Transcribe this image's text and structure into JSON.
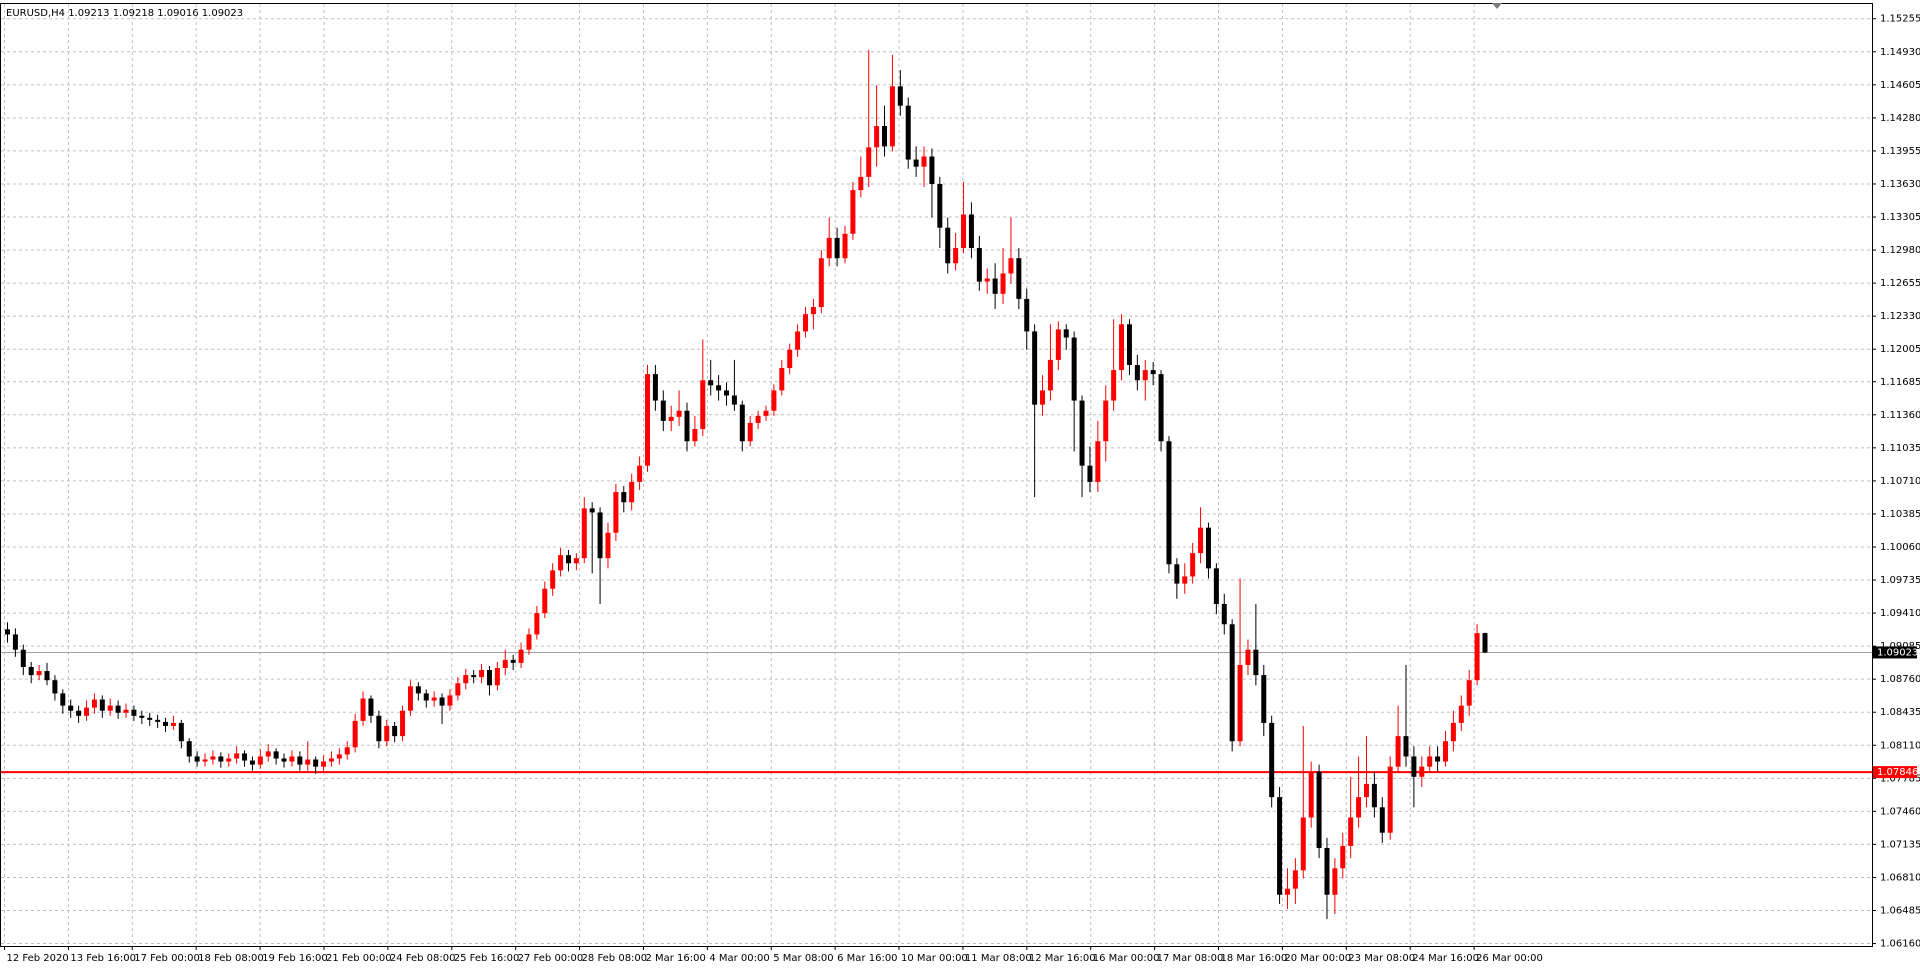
{
  "chart_data": {
    "type": "candlestick",
    "title": "EURUSD,H4  1.09213 1.09218 1.09016 1.09023",
    "up_color": "#ff0000",
    "down_color": "#000000",
    "grid": true,
    "ylim": [
      1.06136,
      1.154
    ],
    "yticks": [
      {
        "value": 1.15255,
        "label": "1.15255"
      },
      {
        "value": 1.1493,
        "label": "1.14930"
      },
      {
        "value": 1.14605,
        "label": "1.14605"
      },
      {
        "value": 1.1428,
        "label": "1.14280"
      },
      {
        "value": 1.13955,
        "label": "1.13955"
      },
      {
        "value": 1.1363,
        "label": "1.13630"
      },
      {
        "value": 1.13305,
        "label": "1.13305"
      },
      {
        "value": 1.1298,
        "label": "1.12980"
      },
      {
        "value": 1.12655,
        "label": "1.12655"
      },
      {
        "value": 1.1233,
        "label": "1.12330"
      },
      {
        "value": 1.12005,
        "label": "1.12005"
      },
      {
        "value": 1.11685,
        "label": "1.11685"
      },
      {
        "value": 1.1136,
        "label": "1.11360"
      },
      {
        "value": 1.11035,
        "label": "1.11035"
      },
      {
        "value": 1.1071,
        "label": "1.10710"
      },
      {
        "value": 1.10385,
        "label": "1.10385"
      },
      {
        "value": 1.1006,
        "label": "1.10060"
      },
      {
        "value": 1.09735,
        "label": "1.09735"
      },
      {
        "value": 1.0941,
        "label": "1.09410"
      },
      {
        "value": 1.09085,
        "label": "1.09085"
      },
      {
        "value": 1.0876,
        "label": "1.08760"
      },
      {
        "value": 1.08435,
        "label": "1.08435"
      },
      {
        "value": 1.0811,
        "label": "1.08110"
      },
      {
        "value": 1.07785,
        "label": "1.07785"
      },
      {
        "value": 1.0746,
        "label": "1.07460"
      },
      {
        "value": 1.07135,
        "label": "1.07135"
      },
      {
        "value": 1.0681,
        "label": "1.06810"
      },
      {
        "value": 1.06485,
        "label": "1.06485"
      },
      {
        "value": 1.0616,
        "label": "1.06160"
      }
    ],
    "xticks": [
      "12 Feb 2020",
      "13 Feb 16:00",
      "17 Feb 00:00",
      "18 Feb 08:00",
      "19 Feb 16:00",
      "21 Feb 00:00",
      "24 Feb 08:00",
      "25 Feb 16:00",
      "27 Feb 00:00",
      "28 Feb 08:00",
      "2 Mar 16:00",
      "4 Mar 00:00",
      "5 Mar 08:00",
      "6 Mar 16:00",
      "10 Mar 00:00",
      "11 Mar 08:00",
      "12 Mar 16:00",
      "16 Mar 00:00",
      "17 Mar 08:00",
      "18 Mar 16:00",
      "20 Mar 00:00",
      "23 Mar 08:00",
      "24 Mar 16:00",
      "26 Mar 00:00"
    ],
    "current_price": {
      "value": 1.09023,
      "label": "1.09023"
    },
    "level": {
      "value": 1.07846,
      "label": "1.07846",
      "color": "#ff0000"
    },
    "candles": [
      [
        1.0925,
        1.0932,
        1.0912,
        1.092
      ],
      [
        1.092,
        1.0926,
        1.0898,
        1.0905
      ],
      [
        1.0905,
        1.091,
        1.088,
        1.0888
      ],
      [
        1.0888,
        1.0893,
        1.0872,
        1.088
      ],
      [
        1.088,
        1.089,
        1.0875,
        1.0884
      ],
      [
        1.0884,
        1.0892,
        1.087,
        1.0875
      ],
      [
        1.0875,
        1.088,
        1.0855,
        1.0862
      ],
      [
        1.0862,
        1.0866,
        1.0842,
        1.085
      ],
      [
        1.085,
        1.0856,
        1.0838,
        1.0845
      ],
      [
        1.0845,
        1.085,
        1.0833,
        1.084
      ],
      [
        1.084,
        1.0855,
        1.0835,
        1.0848
      ],
      [
        1.0848,
        1.0862,
        1.0842,
        1.0856
      ],
      [
        1.0856,
        1.086,
        1.0838,
        1.0845
      ],
      [
        1.0845,
        1.0857,
        1.084,
        1.085
      ],
      [
        1.085,
        1.0855,
        1.0837,
        1.0843
      ],
      [
        1.0843,
        1.0852,
        1.0838,
        1.0846
      ],
      [
        1.0846,
        1.085,
        1.0835,
        1.084
      ],
      [
        1.084,
        1.0845,
        1.0832,
        1.0838
      ],
      [
        1.0838,
        1.0843,
        1.083,
        1.0836
      ],
      [
        1.0836,
        1.0841,
        1.0828,
        1.0834
      ],
      [
        1.0834,
        1.0838,
        1.0824,
        1.083
      ],
      [
        1.083,
        1.084,
        1.0826,
        1.0833
      ],
      [
        1.0833,
        1.0836,
        1.0808,
        1.0815
      ],
      [
        1.0815,
        1.0818,
        1.0794,
        1.08
      ],
      [
        1.08,
        1.0805,
        1.079,
        1.0795
      ],
      [
        1.0795,
        1.0803,
        1.079,
        1.0797
      ],
      [
        1.0797,
        1.0806,
        1.0792,
        1.08
      ],
      [
        1.08,
        1.0804,
        1.0789,
        1.0795
      ],
      [
        1.0795,
        1.0803,
        1.079,
        1.0798
      ],
      [
        1.0798,
        1.081,
        1.0793,
        1.0803
      ],
      [
        1.0803,
        1.0806,
        1.079,
        1.0796
      ],
      [
        1.0796,
        1.08,
        1.0786,
        1.0792
      ],
      [
        1.0792,
        1.0807,
        1.0788,
        1.08
      ],
      [
        1.08,
        1.0812,
        1.0795,
        1.0805
      ],
      [
        1.0805,
        1.0808,
        1.0792,
        1.0798
      ],
      [
        1.0798,
        1.0803,
        1.0789,
        1.0795
      ],
      [
        1.0795,
        1.0806,
        1.079,
        1.08
      ],
      [
        1.08,
        1.0805,
        1.0786,
        1.0792
      ],
      [
        1.0792,
        1.0815,
        1.0786,
        1.0797
      ],
      [
        1.0797,
        1.08,
        1.0783,
        1.079
      ],
      [
        1.079,
        1.0801,
        1.0785,
        1.0795
      ],
      [
        1.0795,
        1.0805,
        1.079,
        1.0798
      ],
      [
        1.0798,
        1.0808,
        1.0792,
        1.0802
      ],
      [
        1.0802,
        1.0815,
        1.0797,
        1.0809
      ],
      [
        1.0809,
        1.0842,
        1.0804,
        1.0835
      ],
      [
        1.0835,
        1.0864,
        1.083,
        1.0857
      ],
      [
        1.0857,
        1.086,
        1.0833,
        1.084
      ],
      [
        1.084,
        1.0845,
        1.0808,
        1.0815
      ],
      [
        1.0815,
        1.0836,
        1.081,
        1.083
      ],
      [
        1.083,
        1.0834,
        1.0814,
        1.082
      ],
      [
        1.082,
        1.085,
        1.0815,
        1.0845
      ],
      [
        1.0845,
        1.0875,
        1.084,
        1.0869
      ],
      [
        1.0869,
        1.0873,
        1.0855,
        1.0862
      ],
      [
        1.0862,
        1.0866,
        1.0848,
        1.0855
      ],
      [
        1.0855,
        1.0864,
        1.0849,
        1.0858
      ],
      [
        1.0858,
        1.0862,
        1.0832,
        1.085
      ],
      [
        1.085,
        1.0866,
        1.0845,
        1.086
      ],
      [
        1.086,
        1.0878,
        1.0855,
        1.0872
      ],
      [
        1.0872,
        1.0886,
        1.0866,
        1.088
      ],
      [
        1.088,
        1.0885,
        1.0872,
        1.0878
      ],
      [
        1.0878,
        1.0891,
        1.0872,
        1.0885
      ],
      [
        1.0885,
        1.0889,
        1.086,
        1.087
      ],
      [
        1.087,
        1.0893,
        1.0865,
        1.0887
      ],
      [
        1.0887,
        1.0905,
        1.088,
        1.0895
      ],
      [
        1.0895,
        1.09,
        1.0885,
        1.0892
      ],
      [
        1.0892,
        1.0912,
        1.0887,
        1.0905
      ],
      [
        1.0905,
        1.0926,
        1.09,
        1.092
      ],
      [
        1.092,
        1.0948,
        1.0915,
        1.0941
      ],
      [
        1.0941,
        1.0972,
        1.0936,
        1.0965
      ],
      [
        1.0965,
        1.099,
        1.0958,
        1.0983
      ],
      [
        1.0983,
        1.1005,
        1.0977,
        1.0998
      ],
      [
        1.0998,
        1.1003,
        1.0982,
        1.099
      ],
      [
        1.099,
        1.1,
        1.0983,
        1.0995
      ],
      [
        1.0995,
        1.1055,
        1.099,
        1.1044
      ],
      [
        1.1044,
        1.105,
        1.098,
        1.104
      ],
      [
        1.104,
        1.1045,
        1.095,
        1.0995
      ],
      [
        1.0995,
        1.103,
        1.0985,
        1.102
      ],
      [
        1.102,
        1.1068,
        1.1012,
        1.106
      ],
      [
        1.106,
        1.1066,
        1.104,
        1.105
      ],
      [
        1.105,
        1.1078,
        1.1042,
        1.107
      ],
      [
        1.107,
        1.1095,
        1.1062,
        1.1086
      ],
      [
        1.1086,
        1.1185,
        1.108,
        1.1176
      ],
      [
        1.1176,
        1.1185,
        1.114,
        1.115
      ],
      [
        1.115,
        1.116,
        1.112,
        1.113
      ],
      [
        1.113,
        1.1145,
        1.112,
        1.1134
      ],
      [
        1.1134,
        1.116,
        1.1125,
        1.114
      ],
      [
        1.114,
        1.1148,
        1.11,
        1.111
      ],
      [
        1.111,
        1.1135,
        1.1105,
        1.1122
      ],
      [
        1.1122,
        1.121,
        1.1115,
        1.117
      ],
      [
        1.117,
        1.119,
        1.1155,
        1.1165
      ],
      [
        1.1165,
        1.1175,
        1.115,
        1.116
      ],
      [
        1.116,
        1.1168,
        1.1145,
        1.1155
      ],
      [
        1.1155,
        1.119,
        1.114,
        1.1146
      ],
      [
        1.1146,
        1.115,
        1.11,
        1.111
      ],
      [
        1.111,
        1.1135,
        1.1105,
        1.1128
      ],
      [
        1.1128,
        1.114,
        1.1122,
        1.1135
      ],
      [
        1.1135,
        1.1145,
        1.113,
        1.114
      ],
      [
        1.114,
        1.1166,
        1.1135,
        1.116
      ],
      [
        1.116,
        1.119,
        1.1155,
        1.1182
      ],
      [
        1.1182,
        1.1206,
        1.1176,
        1.12
      ],
      [
        1.12,
        1.1225,
        1.1193,
        1.1218
      ],
      [
        1.1218,
        1.1242,
        1.1212,
        1.1235
      ],
      [
        1.1235,
        1.125,
        1.122,
        1.1242
      ],
      [
        1.1242,
        1.1298,
        1.1236,
        1.129
      ],
      [
        1.129,
        1.133,
        1.1282,
        1.131
      ],
      [
        1.131,
        1.132,
        1.1282,
        1.129
      ],
      [
        1.129,
        1.1322,
        1.1285,
        1.1314
      ],
      [
        1.1314,
        1.1365,
        1.1308,
        1.1357
      ],
      [
        1.1357,
        1.139,
        1.135,
        1.137
      ],
      [
        1.137,
        1.1495,
        1.136,
        1.1399
      ],
      [
        1.1399,
        1.146,
        1.138,
        1.142
      ],
      [
        1.142,
        1.144,
        1.139,
        1.14
      ],
      [
        1.14,
        1.149,
        1.1395,
        1.1459
      ],
      [
        1.1459,
        1.1475,
        1.143,
        1.144
      ],
      [
        1.144,
        1.1448,
        1.1378,
        1.1387
      ],
      [
        1.1387,
        1.14,
        1.137,
        1.138
      ],
      [
        1.138,
        1.14,
        1.136,
        1.139
      ],
      [
        1.139,
        1.1398,
        1.133,
        1.1363
      ],
      [
        1.1363,
        1.137,
        1.13,
        1.132
      ],
      [
        1.132,
        1.133,
        1.1275,
        1.1285
      ],
      [
        1.1285,
        1.1315,
        1.1278,
        1.13
      ],
      [
        1.13,
        1.1365,
        1.1295,
        1.1333
      ],
      [
        1.1333,
        1.1345,
        1.129,
        1.13
      ],
      [
        1.13,
        1.1312,
        1.1258,
        1.1267
      ],
      [
        1.1267,
        1.128,
        1.1255,
        1.127
      ],
      [
        1.127,
        1.1285,
        1.124,
        1.1255
      ],
      [
        1.1255,
        1.13,
        1.1245,
        1.1275
      ],
      [
        1.1275,
        1.133,
        1.1265,
        1.129
      ],
      [
        1.129,
        1.13,
        1.124,
        1.125
      ],
      [
        1.125,
        1.126,
        1.12,
        1.1218
      ],
      [
        1.1218,
        1.1225,
        1.1055,
        1.1146
      ],
      [
        1.1146,
        1.1175,
        1.1135,
        1.116
      ],
      [
        1.116,
        1.1225,
        1.115,
        1.119
      ],
      [
        1.119,
        1.1228,
        1.118,
        1.122
      ],
      [
        1.122,
        1.1225,
        1.12,
        1.1212
      ],
      [
        1.1212,
        1.1218,
        1.11,
        1.115
      ],
      [
        1.115,
        1.1155,
        1.1055,
        1.1086
      ],
      [
        1.1086,
        1.1105,
        1.106,
        1.107
      ],
      [
        1.107,
        1.113,
        1.106,
        1.111
      ],
      [
        1.111,
        1.1165,
        1.109,
        1.115
      ],
      [
        1.115,
        1.123,
        1.114,
        1.118
      ],
      [
        1.118,
        1.1235,
        1.117,
        1.1225
      ],
      [
        1.1225,
        1.123,
        1.1175,
        1.1185
      ],
      [
        1.1185,
        1.1195,
        1.116,
        1.117
      ],
      [
        1.117,
        1.119,
        1.115,
        1.118
      ],
      [
        1.118,
        1.1188,
        1.1165,
        1.1176
      ],
      [
        1.1176,
        1.118,
        1.11,
        1.111
      ],
      [
        1.111,
        1.1115,
        1.098,
        1.0989
      ],
      [
        1.0989,
        1.0995,
        1.0955,
        1.097
      ],
      [
        1.097,
        1.099,
        1.096,
        1.0977
      ],
      [
        1.0977,
        1.101,
        1.097,
        1.1
      ],
      [
        1.1,
        1.1045,
        1.099,
        1.1025
      ],
      [
        1.1025,
        1.103,
        1.0975,
        1.0985
      ],
      [
        1.0985,
        1.099,
        1.094,
        1.095
      ],
      [
        1.095,
        1.096,
        1.092,
        1.093
      ],
      [
        1.093,
        1.0935,
        1.0805,
        1.0815
      ],
      [
        1.0815,
        1.0975,
        1.081,
        1.089
      ],
      [
        1.089,
        1.0915,
        1.088,
        1.0905
      ],
      [
        1.0905,
        1.095,
        1.087,
        1.088
      ],
      [
        1.088,
        1.089,
        1.082,
        1.0833
      ],
      [
        1.0833,
        1.084,
        1.075,
        1.076
      ],
      [
        1.076,
        1.077,
        1.0655,
        1.0664
      ],
      [
        1.0664,
        1.069,
        1.065,
        1.067
      ],
      [
        1.067,
        1.07,
        1.0655,
        1.0688
      ],
      [
        1.0688,
        1.083,
        1.068,
        1.074
      ],
      [
        1.074,
        1.0795,
        1.073,
        1.0785
      ],
      [
        1.0785,
        1.0792,
        1.07,
        1.071
      ],
      [
        1.071,
        1.072,
        1.064,
        1.0664
      ],
      [
        1.0664,
        1.07,
        1.0645,
        1.069
      ],
      [
        1.069,
        1.0725,
        1.068,
        1.0712
      ],
      [
        1.0712,
        1.078,
        1.07,
        1.074
      ],
      [
        1.074,
        1.08,
        1.073,
        1.076
      ],
      [
        1.076,
        1.082,
        1.075,
        1.0773
      ],
      [
        1.0773,
        1.0785,
        1.074,
        1.075
      ],
      [
        1.075,
        1.076,
        1.0715,
        1.0725
      ],
      [
        1.0725,
        1.08,
        1.0718,
        1.079
      ],
      [
        1.079,
        1.085,
        1.0785,
        1.082
      ],
      [
        1.082,
        1.089,
        1.079,
        1.08
      ],
      [
        1.08,
        1.081,
        1.075,
        1.078
      ],
      [
        1.078,
        1.08,
        1.077,
        1.079
      ],
      [
        1.079,
        1.081,
        1.0785,
        1.08
      ],
      [
        1.08,
        1.081,
        1.0785,
        1.0795
      ],
      [
        1.0795,
        1.0825,
        1.079,
        1.0815
      ],
      [
        1.0815,
        1.0845,
        1.0805,
        1.0833
      ],
      [
        1.0833,
        1.086,
        1.0825,
        1.085
      ],
      [
        1.085,
        1.0885,
        1.084,
        1.0875
      ],
      [
        1.0875,
        1.093,
        1.087,
        1.09213
      ],
      [
        1.09213,
        1.09218,
        1.09016,
        1.09023
      ]
    ]
  }
}
